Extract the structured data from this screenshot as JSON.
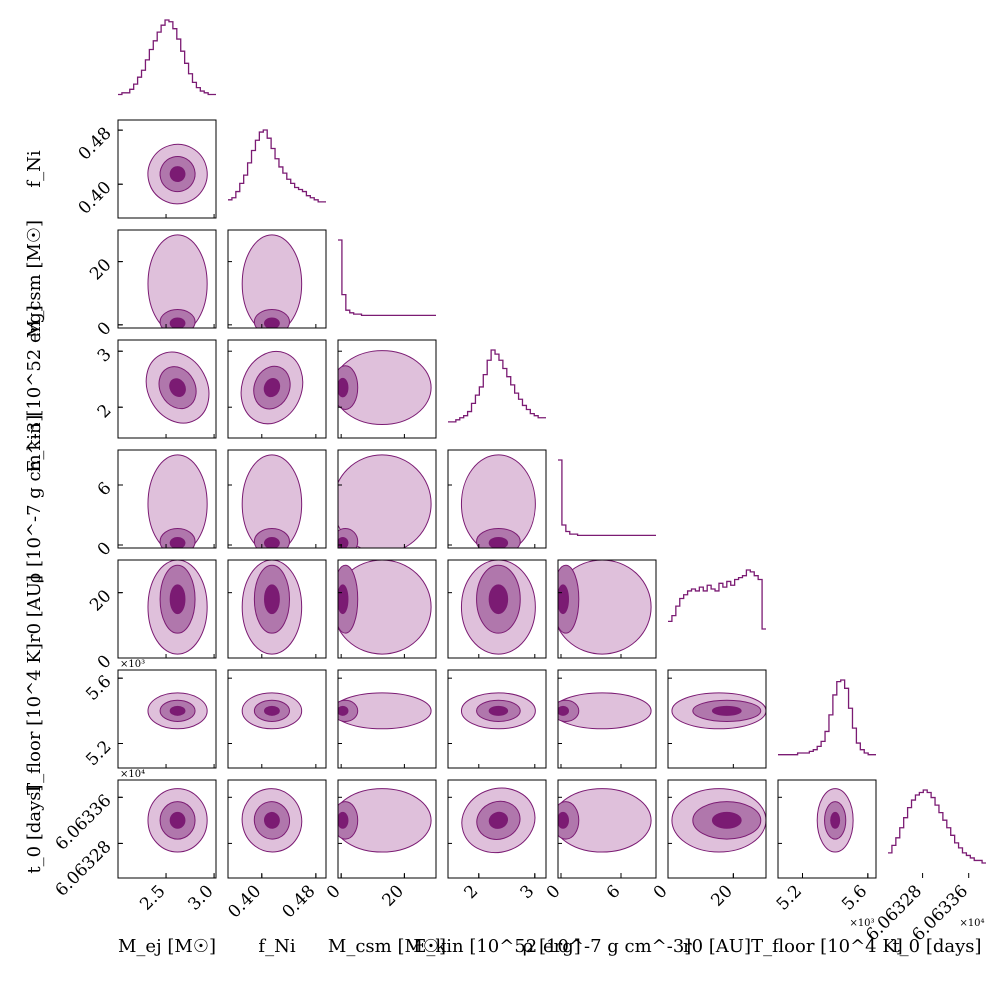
{
  "chart_data": {
    "type": "corner",
    "title": "",
    "colors": {
      "light": "#dfc0db",
      "mid": "#b077ac",
      "dark": "#7b1b73",
      "line": "#7b1b73",
      "axis": "#000000"
    },
    "parameters": [
      {
        "key": "mej",
        "label": "M_ej [M☉]",
        "ylabel": "",
        "range": [
          2.0,
          3.02
        ],
        "ticks": [
          2.5,
          3.0
        ],
        "tick_labels": [
          "2.5",
          "3.0"
        ],
        "mean": 2.62,
        "sd": 0.14
      },
      {
        "key": "fni",
        "label": "f_Ni",
        "ylabel": "f_Ni",
        "range": [
          0.35,
          0.495
        ],
        "ticks": [
          0.4,
          0.48
        ],
        "tick_labels": [
          "0.40",
          "0.48"
        ],
        "mean": 0.415,
        "sd": 0.02
      },
      {
        "key": "mcsm",
        "label": "M_csm [M☉]",
        "ylabel": "M_csm [M☉]",
        "range": [
          -1,
          30
        ],
        "ticks": [
          0,
          20
        ],
        "tick_labels": [
          "0",
          "20"
        ],
        "mean": 0.5,
        "sd": 3
      },
      {
        "key": "ekin",
        "label": "E_kin [10^52 erg]",
        "ylabel": "E_kin [10^52 erg]",
        "range": [
          1.45,
          3.2
        ],
        "ticks": [
          2,
          3
        ],
        "tick_labels": [
          "2",
          "3"
        ],
        "mean": 2.35,
        "sd": 0.3
      },
      {
        "key": "rho",
        "label": "ρ [10^-7 g cm^-3]",
        "ylabel": "ρ [10^-7 g cm^-3]",
        "range": [
          -0.3,
          9.5
        ],
        "ticks": [
          0,
          6
        ],
        "tick_labels": [
          "0",
          "6"
        ],
        "mean": 0.2,
        "sd": 1
      },
      {
        "key": "r0",
        "label": "r0 [AU]",
        "ylabel": "r0 [AU]",
        "range": [
          0,
          30
        ],
        "ticks": [
          0,
          20
        ],
        "tick_labels": [
          "0",
          "20"
        ],
        "mean": 18,
        "sd": 8
      },
      {
        "key": "tfl",
        "label": "T_floor [10^4 K]",
        "ylabel": "T_floor [10^4 K]",
        "range": [
          5.05,
          5.65
        ],
        "ticks": [
          5.2,
          5.6
        ],
        "tick_labels": [
          "5.2",
          "5.6"
        ],
        "mean": 5.4,
        "sd": 0.05,
        "offset_label": "×10³"
      },
      {
        "key": "t0",
        "label": "t_0 [days]",
        "ylabel": "t_0 [days]",
        "range": [
          60632.2,
          60633.9
        ],
        "ticks": [
          60632.8,
          60633.6
        ],
        "tick_labels": [
          "6.06328",
          "6.06336"
        ],
        "mean": 60633.2,
        "sd": 0.25,
        "offset_label": "×10⁴"
      }
    ],
    "contour_levels": [
      "0.5σ",
      "1σ",
      "2σ"
    ],
    "histograms": {
      "mej": [
        2,
        3,
        3,
        5,
        8,
        12,
        16,
        22,
        28,
        33,
        38,
        42,
        45,
        44,
        40,
        34,
        27,
        20,
        14,
        9,
        6,
        4,
        3,
        2,
        2
      ],
      "fni": [
        4,
        5,
        8,
        12,
        16,
        22,
        28,
        33,
        37,
        38,
        34,
        29,
        24,
        20,
        17,
        14,
        12,
        10,
        9,
        8,
        6,
        5,
        4,
        3,
        3
      ],
      "mcsm": [
        60,
        18,
        6,
        4,
        3,
        3,
        2,
        2,
        2,
        2,
        2,
        2,
        2,
        2,
        2,
        2,
        2,
        2,
        2,
        2,
        2,
        2,
        2,
        2,
        2
      ],
      "ekin": [
        3,
        3,
        4,
        5,
        6,
        8,
        12,
        16,
        20,
        26,
        33,
        38,
        36,
        33,
        29,
        25,
        21,
        17,
        14,
        11,
        9,
        7,
        6,
        5,
        5
      ],
      "rho": [
        60,
        10,
        5,
        3,
        3,
        2,
        2,
        2,
        2,
        2,
        2,
        2,
        2,
        2,
        2,
        2,
        2,
        2,
        2,
        2,
        2,
        2,
        2,
        2,
        2
      ],
      "r0": [
        14,
        17,
        22,
        26,
        28,
        30,
        31,
        30,
        32,
        30,
        33,
        31,
        30,
        34,
        32,
        35,
        33,
        36,
        37,
        38,
        41,
        40,
        38,
        36,
        10
      ],
      "tfl": [
        2,
        2,
        2,
        2,
        2,
        3,
        3,
        3,
        4,
        5,
        7,
        10,
        16,
        26,
        38,
        46,
        47,
        42,
        30,
        18,
        9,
        5,
        3,
        2,
        2
      ],
      "t0": [
        6,
        9,
        12,
        16,
        20,
        24,
        27,
        29,
        30,
        31,
        30,
        28,
        25,
        22,
        19,
        16,
        13,
        10,
        8,
        6,
        5,
        4,
        3,
        3,
        2
      ]
    }
  }
}
